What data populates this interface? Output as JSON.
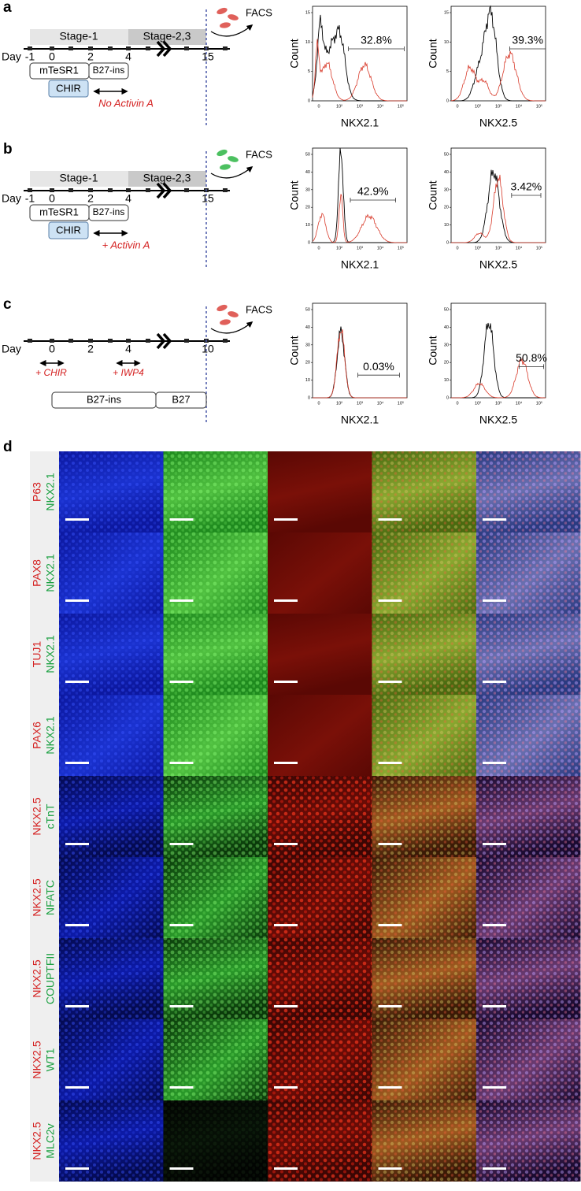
{
  "x_ticks": [
    "0",
    "10²",
    "10³",
    "10⁴",
    "10⁵"
  ],
  "panels": [
    {
      "label": "a",
      "timeline": {
        "stages": [
          "Stage-1",
          "Stage-2,3"
        ],
        "day_label": "Day",
        "days": [
          "-1",
          "0",
          "2",
          "4",
          "15"
        ],
        "media": [
          "mTeSR1",
          "B27-ins"
        ],
        "treatment": "CHIR",
        "condition": "No Activin A",
        "facs": "FACS"
      },
      "histograms": [
        {
          "y_label": "Count",
          "x_label": "NKX2.1",
          "yticks": [
            "0",
            "5",
            "10",
            "15"
          ],
          "gate": "32.8%"
        },
        {
          "y_label": "Count",
          "x_label": "NKX2.5",
          "yticks": [
            "0",
            "5",
            "10",
            "15"
          ],
          "gate": "39.3%"
        }
      ]
    },
    {
      "label": "b",
      "timeline": {
        "stages": [
          "Stage-1",
          "Stage-2,3"
        ],
        "day_label": "Day",
        "days": [
          "-1",
          "0",
          "2",
          "4",
          "15"
        ],
        "media": [
          "mTeSR1",
          "B27-ins"
        ],
        "treatment": "CHIR",
        "condition": "+ Activin A",
        "facs": "FACS"
      },
      "histograms": [
        {
          "y_label": "Count",
          "x_label": "NKX2.1",
          "yticks": [
            "0",
            "10",
            "20",
            "30",
            "40",
            "50"
          ],
          "gate": "42.9%"
        },
        {
          "y_label": "Count",
          "x_label": "NKX2.5",
          "yticks": [
            "0",
            "10",
            "20",
            "30",
            "40",
            "50"
          ],
          "gate": "3.42%"
        }
      ]
    },
    {
      "label": "c",
      "timeline": {
        "day_label": "Day",
        "days": [
          "0",
          "2",
          "4",
          "10"
        ],
        "treatments": [
          "+ CHIR",
          "+ IWP4"
        ],
        "media": [
          "B27-ins",
          "B27"
        ],
        "facs": "FACS"
      },
      "histograms": [
        {
          "y_label": "Count",
          "x_label": "NKX2.1",
          "yticks": [
            "0",
            "10",
            "20",
            "30",
            "40",
            "50"
          ],
          "gate": "0.03%"
        },
        {
          "y_label": "Count",
          "x_label": "NKX2.5",
          "yticks": [
            "0",
            "10",
            "20",
            "30",
            "40",
            "50"
          ],
          "gate": "50.8%"
        }
      ]
    }
  ],
  "panel_d": {
    "label": "d",
    "rows": [
      {
        "red": "P63",
        "green": "NKX2.1"
      },
      {
        "red": "PAX8",
        "green": "NKX2.1"
      },
      {
        "red": "TUJ1",
        "green": "NKX2.1"
      },
      {
        "red": "PAX6",
        "green": "NKX2.1"
      },
      {
        "red": "NKX2.5",
        "green": "cTnT"
      },
      {
        "red": "NKX2.5",
        "green": "NFATC"
      },
      {
        "red": "NKX2.5",
        "green": "COUPTFII"
      },
      {
        "red": "NKX2.5",
        "green": "WT1"
      },
      {
        "red": "NKX2.5",
        "green": "MLC2v"
      }
    ]
  }
}
